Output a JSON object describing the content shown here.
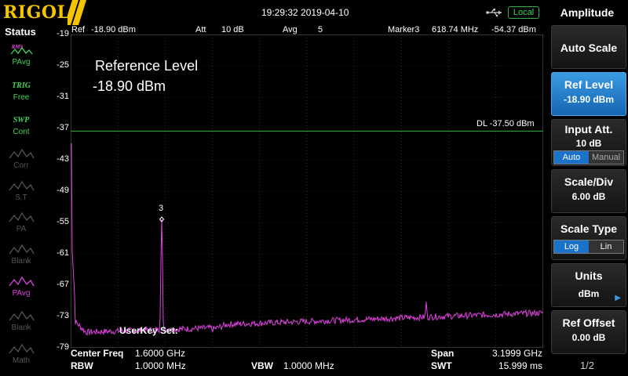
{
  "brand": "RIGOL",
  "datetime": "19:29:32 2019-04-10",
  "local_badge": "Local",
  "status": {
    "title": "Status",
    "items": [
      {
        "icon": "pavg-icon",
        "top_text": "RMS",
        "text": "PAvg",
        "color": "#3fd45a"
      },
      {
        "icon": "trig-icon",
        "top_text": "TRIG",
        "text": "Free",
        "color": "#3fd45a"
      },
      {
        "icon": "swp-icon",
        "top_text": "SWP",
        "text": "Cont",
        "color": "#3fd45a"
      },
      {
        "icon": "corr-icon",
        "top_text": "",
        "text": "Corr",
        "color": "#555555"
      },
      {
        "icon": "st-icon",
        "top_text": "",
        "text": "S.T",
        "color": "#555555"
      },
      {
        "icon": "pa-icon",
        "top_text": "",
        "text": "PA",
        "color": "#555555"
      },
      {
        "icon": "blank-icon",
        "top_text": "",
        "text": "Blank",
        "color": "#555555"
      },
      {
        "icon": "pavg-trace-icon",
        "top_text": "",
        "text": "PAvg",
        "color": "#e040e0"
      },
      {
        "icon": "blank-icon",
        "top_text": "",
        "text": "Blank",
        "color": "#555555"
      },
      {
        "icon": "math-icon",
        "top_text": "",
        "text": "Math",
        "color": "#555555"
      }
    ]
  },
  "header": {
    "ref_label": "Ref",
    "ref_value": "-18.90 dBm",
    "att_label": "Att",
    "att_value": "10 dB",
    "avg_label": "Avg",
    "avg_value": "5",
    "marker_label": "Marker3",
    "marker_freq": "618.74 MHz",
    "marker_level": "-54.37 dBm"
  },
  "y_axis_labels": [
    "-19",
    "-25",
    "-31",
    "-37",
    "-43",
    "-49",
    "-55",
    "-61",
    "-67",
    "-73",
    "-79"
  ],
  "annotation": {
    "line1": "Reference Level",
    "line2": "-18.90 dBm"
  },
  "display_line": {
    "label": "DL",
    "value": "-37.50 dBm",
    "level": -37.5
  },
  "marker_number": "3",
  "userkey_text": "UserKey Set:",
  "footer": {
    "center_label": "Center Freq",
    "center_value": "1.6000 GHz",
    "rbw_label": "RBW",
    "rbw_value": "1.0000 MHz",
    "vbw_label": "VBW",
    "vbw_value": "1.0000 MHz",
    "span_label": "Span",
    "span_value": "3.1999 GHz",
    "swt_label": "SWT",
    "swt_value": "15.999 ms"
  },
  "menu": {
    "title": "Amplitude",
    "auto_scale": "Auto Scale",
    "ref_level_label": "Ref Level",
    "ref_level_value": "-18.90 dBm",
    "input_att_label": "Input Att.",
    "input_att_value": "10 dB",
    "input_att_auto": "Auto",
    "input_att_manual": "Manual",
    "scale_div_label": "Scale/Div",
    "scale_div_value": "6.00 dB",
    "scale_type_label": "Scale Type",
    "scale_type_log": "Log",
    "scale_type_lin": "Lin",
    "units_label": "Units",
    "units_value": "dBm",
    "ref_offset_label": "Ref Offset",
    "ref_offset_value": "0.00 dB",
    "page": "1/2"
  },
  "colors": {
    "brand": "#f5c400",
    "trace": "#e040e0",
    "display_line": "#2fb24a",
    "active_button": "#1a73c8"
  }
}
